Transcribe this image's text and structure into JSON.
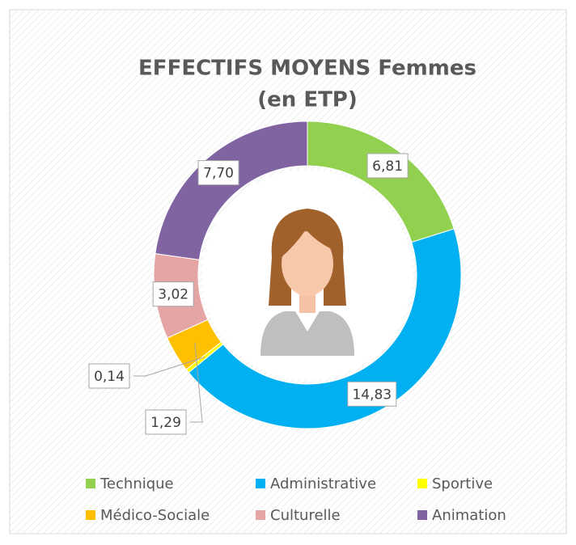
{
  "chart_data": {
    "type": "donut",
    "title": "EFFECTIFS MOYENS Femmes",
    "subtitle": "(en ETP)",
    "categories": [
      "Technique",
      "Administrative",
      "Sportive",
      "Médico-Sociale",
      "Culturelle",
      "Animation"
    ],
    "values": [
      6.81,
      14.83,
      0.14,
      1.29,
      3.02,
      7.7
    ],
    "value_labels": [
      "6,81",
      "14,83",
      "0,14",
      "1,29",
      "3,02",
      "7,70"
    ],
    "colors": [
      "#92d050",
      "#00b0f0",
      "#ffff00",
      "#ffc000",
      "#e6a5a5",
      "#8064a2"
    ]
  }
}
